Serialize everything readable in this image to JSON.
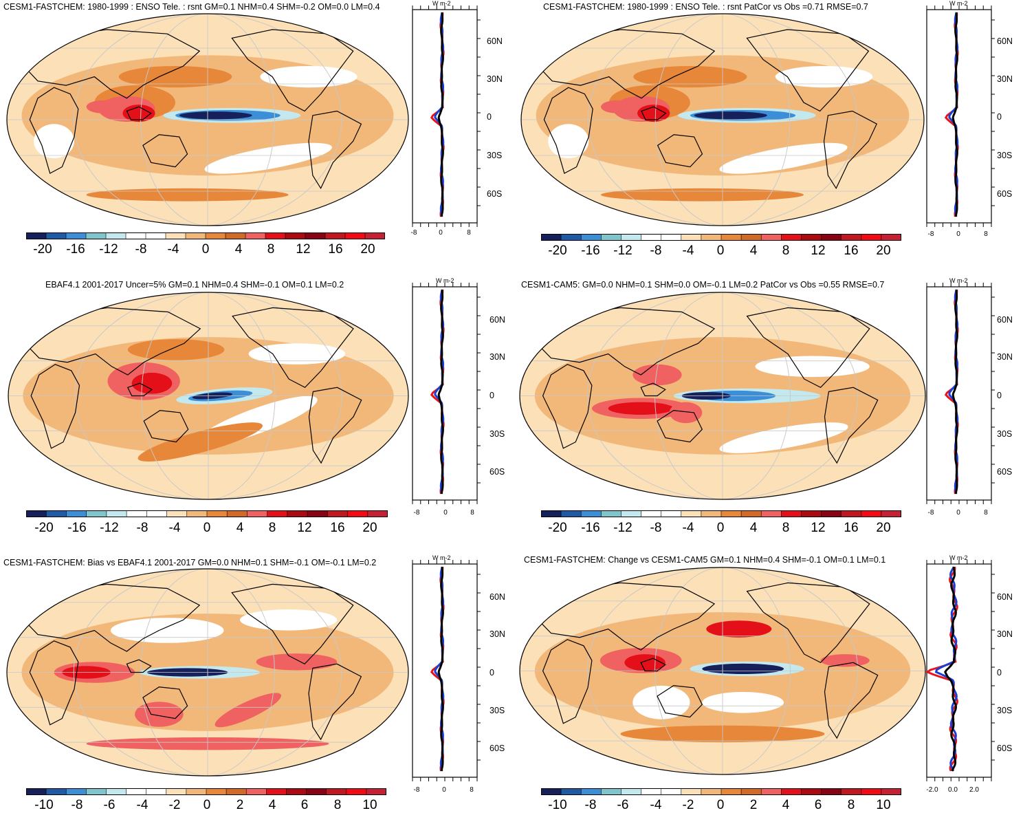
{
  "units": "W m-2",
  "colors": {
    "scale": [
      "#16205a",
      "#1f5aa5",
      "#3c8fd6",
      "#7ec5cc",
      "#c3e9ee",
      "#ffffff",
      "#ffffff",
      "#fbe0b8",
      "#f2b879",
      "#e7873a",
      "#d06a24",
      "#f06262",
      "#e3101a",
      "#ab0a12",
      "#880414",
      "#c01820",
      "#f20a14",
      "#c52033"
    ],
    "profile_red": "#e8141b",
    "profile_blue": "#1d3fd1",
    "profile_black": "#000000"
  },
  "panels": [
    {
      "id": "p1",
      "title": "CESM1-FASTCHEM: 1980-1999 : ENSO Tele. : rsnt GM=0.1 NHM=0.4 SHM=-0.2 OM=0.0 LM=0.4",
      "colorbar_labels": [
        "-20",
        "-16",
        "-12",
        "-8",
        "-4",
        "0",
        "4",
        "8",
        "12",
        "16",
        "20"
      ],
      "profile_xlabels": [
        "-8",
        "0",
        "8"
      ],
      "lat_labels": [
        "60N",
        "30N",
        "0",
        "30S",
        "60S"
      ],
      "pattern": "ensoA"
    },
    {
      "id": "p2",
      "title": "CESM1-FASTCHEM: 1980-1999 : ENSO Tele. : rsnt PatCor vs Obs =0.71 RMSE=0.7",
      "colorbar_labels": [
        "-20",
        "-16",
        "-12",
        "-8",
        "-4",
        "0",
        "4",
        "8",
        "12",
        "16",
        "20"
      ],
      "profile_xlabels": [
        "-8",
        "0",
        "8"
      ],
      "lat_labels": [
        "60N",
        "30N",
        "0",
        "30S",
        "60S"
      ],
      "pattern": "ensoA"
    },
    {
      "id": "p3",
      "title": "EBAF4.1 2001-2017 Uncer=5% GM=0.1 NHM=0.4 SHM=-0.1 OM=0.1 LM=0.2",
      "colorbar_labels": [
        "-20",
        "-16",
        "-12",
        "-8",
        "-4",
        "0",
        "4",
        "8",
        "12",
        "16",
        "20"
      ],
      "profile_xlabels": [
        "-8",
        "0",
        "8"
      ],
      "lat_labels": [
        "60N",
        "30N",
        "0",
        "30S",
        "60S"
      ],
      "pattern": "ensoB"
    },
    {
      "id": "p4",
      "title": "CESM1-CAM5: GM=0.0 NHM=0.1 SHM=0.0 OM=-0.1 LM=0.2 PatCor vs Obs =0.55 RMSE=0.7",
      "colorbar_labels": [
        "-20",
        "-16",
        "-12",
        "-8",
        "-4",
        "0",
        "4",
        "8",
        "12",
        "16",
        "20"
      ],
      "profile_xlabels": [
        "-8",
        "0",
        "8"
      ],
      "lat_labels": [
        "60N",
        "30N",
        "0",
        "30S",
        "60S"
      ],
      "pattern": "ensoC"
    },
    {
      "id": "p5",
      "title": "CESM1-FASTCHEM: Bias vs EBAF4.1 2001-2017 GM=0.0 NHM=0.1 SHM=-0.1 OM=-0.1 LM=0.2",
      "colorbar_labels": [
        "-10",
        "-8",
        "-6",
        "-4",
        "-2",
        "0",
        "2",
        "4",
        "6",
        "8",
        "10"
      ],
      "profile_xlabels": [
        "-8",
        "0",
        "8"
      ],
      "lat_labels": [
        "60N",
        "30N",
        "0",
        "30S",
        "60S"
      ],
      "pattern": "bias"
    },
    {
      "id": "p6",
      "title": "CESM1-FASTCHEM: Change vs CESM1-CAM5 GM=0.1 NHM=0.4 SHM=-0.1 OM=0.1 LM=0.1",
      "colorbar_labels": [
        "-10",
        "-8",
        "-6",
        "-4",
        "-2",
        "0",
        "2",
        "4",
        "6",
        "8",
        "10"
      ],
      "profile_xlabels": [
        "-2.0",
        "0.0",
        "2.0"
      ],
      "lat_labels": [
        "60N",
        "30N",
        "0",
        "30S",
        "60S"
      ],
      "pattern": "change"
    }
  ]
}
